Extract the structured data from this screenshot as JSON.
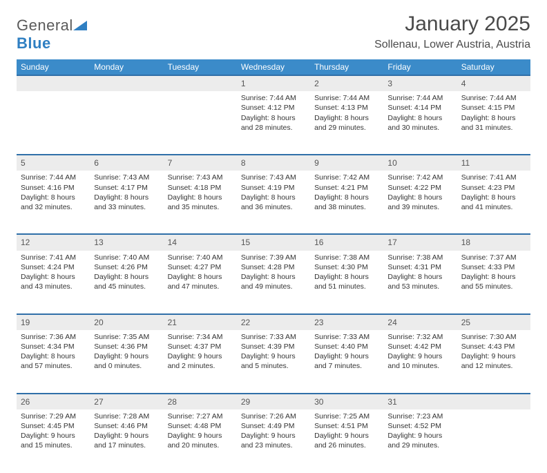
{
  "logo": {
    "text1": "General",
    "text2": "Blue"
  },
  "title": "January 2025",
  "location": "Sollenau, Lower Austria, Austria",
  "colors": {
    "header_bg": "#3b8bc9",
    "header_text": "#ffffff",
    "daynum_bg": "#ececec",
    "row_border": "#2f6fa8",
    "body_text": "#333333",
    "title_text": "#4a4a4a"
  },
  "days": [
    "Sunday",
    "Monday",
    "Tuesday",
    "Wednesday",
    "Thursday",
    "Friday",
    "Saturday"
  ],
  "weeks": [
    [
      null,
      null,
      null,
      {
        "n": "1",
        "sr": "Sunrise: 7:44 AM",
        "ss": "Sunset: 4:12 PM",
        "dl": "Daylight: 8 hours and 28 minutes."
      },
      {
        "n": "2",
        "sr": "Sunrise: 7:44 AM",
        "ss": "Sunset: 4:13 PM",
        "dl": "Daylight: 8 hours and 29 minutes."
      },
      {
        "n": "3",
        "sr": "Sunrise: 7:44 AM",
        "ss": "Sunset: 4:14 PM",
        "dl": "Daylight: 8 hours and 30 minutes."
      },
      {
        "n": "4",
        "sr": "Sunrise: 7:44 AM",
        "ss": "Sunset: 4:15 PM",
        "dl": "Daylight: 8 hours and 31 minutes."
      }
    ],
    [
      {
        "n": "5",
        "sr": "Sunrise: 7:44 AM",
        "ss": "Sunset: 4:16 PM",
        "dl": "Daylight: 8 hours and 32 minutes."
      },
      {
        "n": "6",
        "sr": "Sunrise: 7:43 AM",
        "ss": "Sunset: 4:17 PM",
        "dl": "Daylight: 8 hours and 33 minutes."
      },
      {
        "n": "7",
        "sr": "Sunrise: 7:43 AM",
        "ss": "Sunset: 4:18 PM",
        "dl": "Daylight: 8 hours and 35 minutes."
      },
      {
        "n": "8",
        "sr": "Sunrise: 7:43 AM",
        "ss": "Sunset: 4:19 PM",
        "dl": "Daylight: 8 hours and 36 minutes."
      },
      {
        "n": "9",
        "sr": "Sunrise: 7:42 AM",
        "ss": "Sunset: 4:21 PM",
        "dl": "Daylight: 8 hours and 38 minutes."
      },
      {
        "n": "10",
        "sr": "Sunrise: 7:42 AM",
        "ss": "Sunset: 4:22 PM",
        "dl": "Daylight: 8 hours and 39 minutes."
      },
      {
        "n": "11",
        "sr": "Sunrise: 7:41 AM",
        "ss": "Sunset: 4:23 PM",
        "dl": "Daylight: 8 hours and 41 minutes."
      }
    ],
    [
      {
        "n": "12",
        "sr": "Sunrise: 7:41 AM",
        "ss": "Sunset: 4:24 PM",
        "dl": "Daylight: 8 hours and 43 minutes."
      },
      {
        "n": "13",
        "sr": "Sunrise: 7:40 AM",
        "ss": "Sunset: 4:26 PM",
        "dl": "Daylight: 8 hours and 45 minutes."
      },
      {
        "n": "14",
        "sr": "Sunrise: 7:40 AM",
        "ss": "Sunset: 4:27 PM",
        "dl": "Daylight: 8 hours and 47 minutes."
      },
      {
        "n": "15",
        "sr": "Sunrise: 7:39 AM",
        "ss": "Sunset: 4:28 PM",
        "dl": "Daylight: 8 hours and 49 minutes."
      },
      {
        "n": "16",
        "sr": "Sunrise: 7:38 AM",
        "ss": "Sunset: 4:30 PM",
        "dl": "Daylight: 8 hours and 51 minutes."
      },
      {
        "n": "17",
        "sr": "Sunrise: 7:38 AM",
        "ss": "Sunset: 4:31 PM",
        "dl": "Daylight: 8 hours and 53 minutes."
      },
      {
        "n": "18",
        "sr": "Sunrise: 7:37 AM",
        "ss": "Sunset: 4:33 PM",
        "dl": "Daylight: 8 hours and 55 minutes."
      }
    ],
    [
      {
        "n": "19",
        "sr": "Sunrise: 7:36 AM",
        "ss": "Sunset: 4:34 PM",
        "dl": "Daylight: 8 hours and 57 minutes."
      },
      {
        "n": "20",
        "sr": "Sunrise: 7:35 AM",
        "ss": "Sunset: 4:36 PM",
        "dl": "Daylight: 9 hours and 0 minutes."
      },
      {
        "n": "21",
        "sr": "Sunrise: 7:34 AM",
        "ss": "Sunset: 4:37 PM",
        "dl": "Daylight: 9 hours and 2 minutes."
      },
      {
        "n": "22",
        "sr": "Sunrise: 7:33 AM",
        "ss": "Sunset: 4:39 PM",
        "dl": "Daylight: 9 hours and 5 minutes."
      },
      {
        "n": "23",
        "sr": "Sunrise: 7:33 AM",
        "ss": "Sunset: 4:40 PM",
        "dl": "Daylight: 9 hours and 7 minutes."
      },
      {
        "n": "24",
        "sr": "Sunrise: 7:32 AM",
        "ss": "Sunset: 4:42 PM",
        "dl": "Daylight: 9 hours and 10 minutes."
      },
      {
        "n": "25",
        "sr": "Sunrise: 7:30 AM",
        "ss": "Sunset: 4:43 PM",
        "dl": "Daylight: 9 hours and 12 minutes."
      }
    ],
    [
      {
        "n": "26",
        "sr": "Sunrise: 7:29 AM",
        "ss": "Sunset: 4:45 PM",
        "dl": "Daylight: 9 hours and 15 minutes."
      },
      {
        "n": "27",
        "sr": "Sunrise: 7:28 AM",
        "ss": "Sunset: 4:46 PM",
        "dl": "Daylight: 9 hours and 17 minutes."
      },
      {
        "n": "28",
        "sr": "Sunrise: 7:27 AM",
        "ss": "Sunset: 4:48 PM",
        "dl": "Daylight: 9 hours and 20 minutes."
      },
      {
        "n": "29",
        "sr": "Sunrise: 7:26 AM",
        "ss": "Sunset: 4:49 PM",
        "dl": "Daylight: 9 hours and 23 minutes."
      },
      {
        "n": "30",
        "sr": "Sunrise: 7:25 AM",
        "ss": "Sunset: 4:51 PM",
        "dl": "Daylight: 9 hours and 26 minutes."
      },
      {
        "n": "31",
        "sr": "Sunrise: 7:23 AM",
        "ss": "Sunset: 4:52 PM",
        "dl": "Daylight: 9 hours and 29 minutes."
      },
      null
    ]
  ]
}
